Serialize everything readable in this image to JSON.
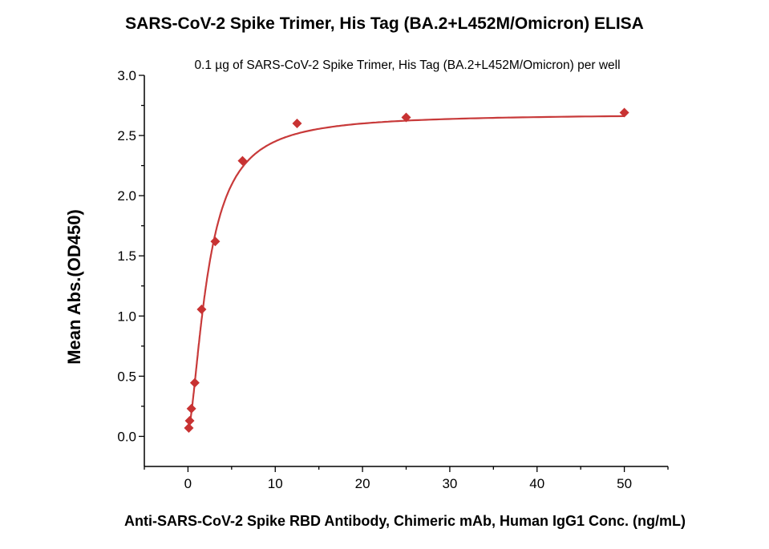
{
  "chart_data": {
    "type": "scatter",
    "title": "SARS-CoV-2 Spike Trimer, His Tag (BA.2+L452M/Omicron) ELISA",
    "subtitle": "0.1 µg of SARS-CoV-2 Spike Trimer, His Tag (BA.2+L452M/Omicron) per well",
    "xlabel": "Anti-SARS-CoV-2 Spike RBD Antibody, Chimeric mAb, Human IgG1 Conc. (ng/mL)",
    "ylabel": "Mean Abs.(OD450)",
    "xlim": [
      -5,
      55
    ],
    "ylim": [
      -0.25,
      3.0
    ],
    "xticks": [
      0,
      10,
      20,
      30,
      40,
      50
    ],
    "yticks": [
      0.0,
      0.5,
      1.0,
      1.5,
      2.0,
      2.5,
      3.0
    ],
    "ytick_labels": [
      "0.0",
      "0.5",
      "1.0",
      "1.5",
      "2.0",
      "2.5",
      "3.0"
    ],
    "grid": false,
    "legend": "none",
    "series": [
      {
        "x": [
          0.098,
          0.195,
          0.39,
          0.78,
          1.5625,
          3.125,
          6.25,
          12.5,
          25,
          50
        ],
        "y": [
          0.07,
          0.13,
          0.23,
          0.445,
          1.055,
          1.62,
          2.29,
          2.6,
          2.65,
          2.69
        ],
        "marker": "diamond",
        "fit": "4-parameter logistic curve",
        "color": "#c83232"
      }
    ]
  }
}
